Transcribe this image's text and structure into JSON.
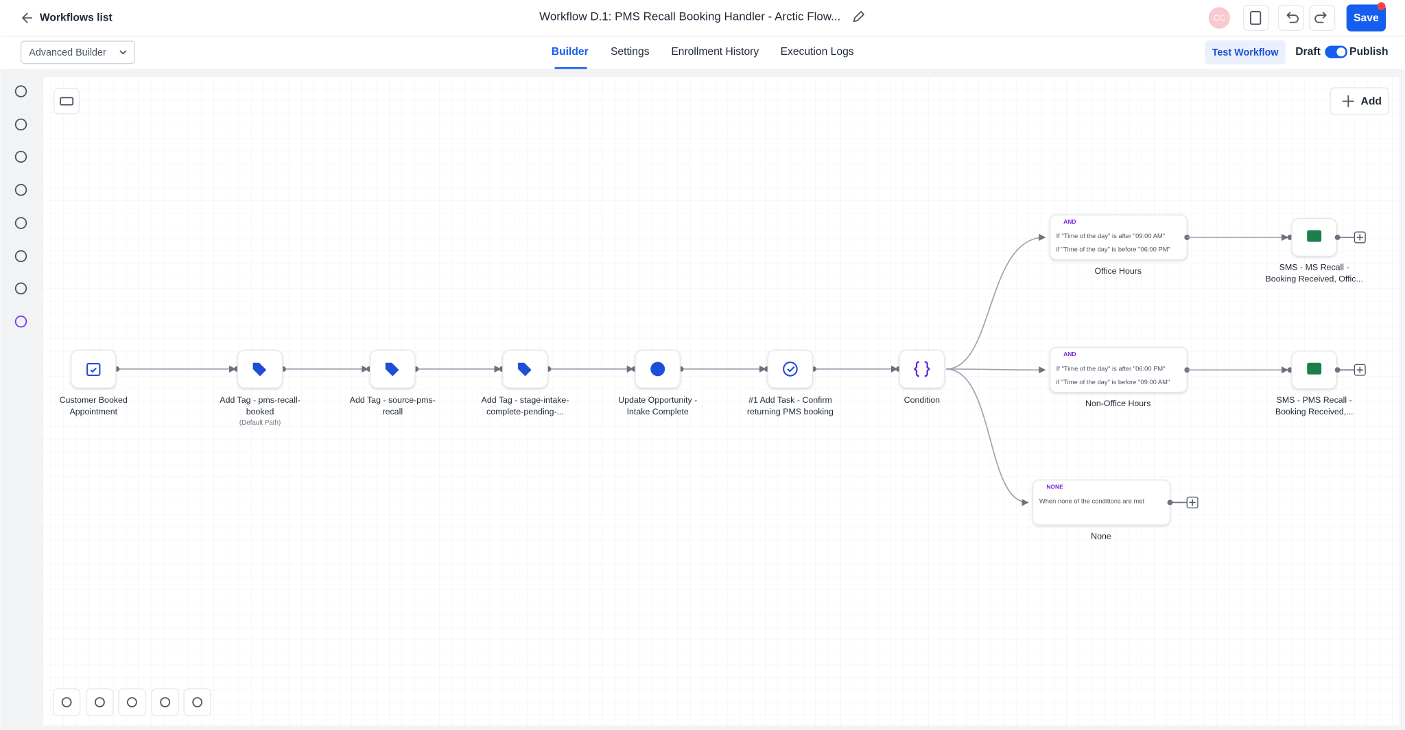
{
  "header": {
    "back_label": "Workflows list",
    "title": "Workflow D.1: PMS Recall Booking Handler - Arctic Flow...",
    "avatar": "CC",
    "save": "Save"
  },
  "toolbar": {
    "builder_select": "Advanced Builder",
    "tabs": [
      "Builder",
      "Settings",
      "Enrollment History",
      "Execution Logs"
    ],
    "test": "Test Workflow",
    "draft": "Draft",
    "publish": "Publish"
  },
  "canvas": {
    "add": "Add"
  },
  "nodes": [
    {
      "label": [
        "Customer Booked",
        "Appointment"
      ]
    },
    {
      "label": [
        "Add Tag - pms-recall-",
        "booked"
      ],
      "note": "(Default Path)"
    },
    {
      "label": [
        "Add Tag - source-pms-",
        "recall"
      ]
    },
    {
      "label": [
        "Add Tag - stage-intake-",
        "complete-pending-..."
      ]
    },
    {
      "label": [
        "Update Opportunity -",
        "Intake Complete"
      ]
    },
    {
      "label": [
        "#1 Add Task - Confirm",
        "returning PMS booking"
      ]
    },
    {
      "label": [
        "Condition"
      ]
    }
  ],
  "branches": [
    {
      "tag": "AND",
      "lines": [
        "If \"Time of the day\" is after \"09:00 AM\"",
        "if \"Time of the day\" is before \"06:00 PM\""
      ],
      "label": "Office Hours",
      "action": [
        "SMS - MS Recall -",
        "Booking Received, Offic..."
      ]
    },
    {
      "tag": "AND",
      "lines": [
        "If \"Time of the day\" is after \"06:00 PM\"",
        "if \"Time of the day\" is before \"09:00 AM\""
      ],
      "label": "Non-Office Hours",
      "action": [
        "SMS - PMS Recall -",
        "Booking Received,..."
      ]
    },
    {
      "tag": "NONE",
      "lines": [
        "When none of the conditions are met"
      ],
      "label": "None"
    }
  ]
}
